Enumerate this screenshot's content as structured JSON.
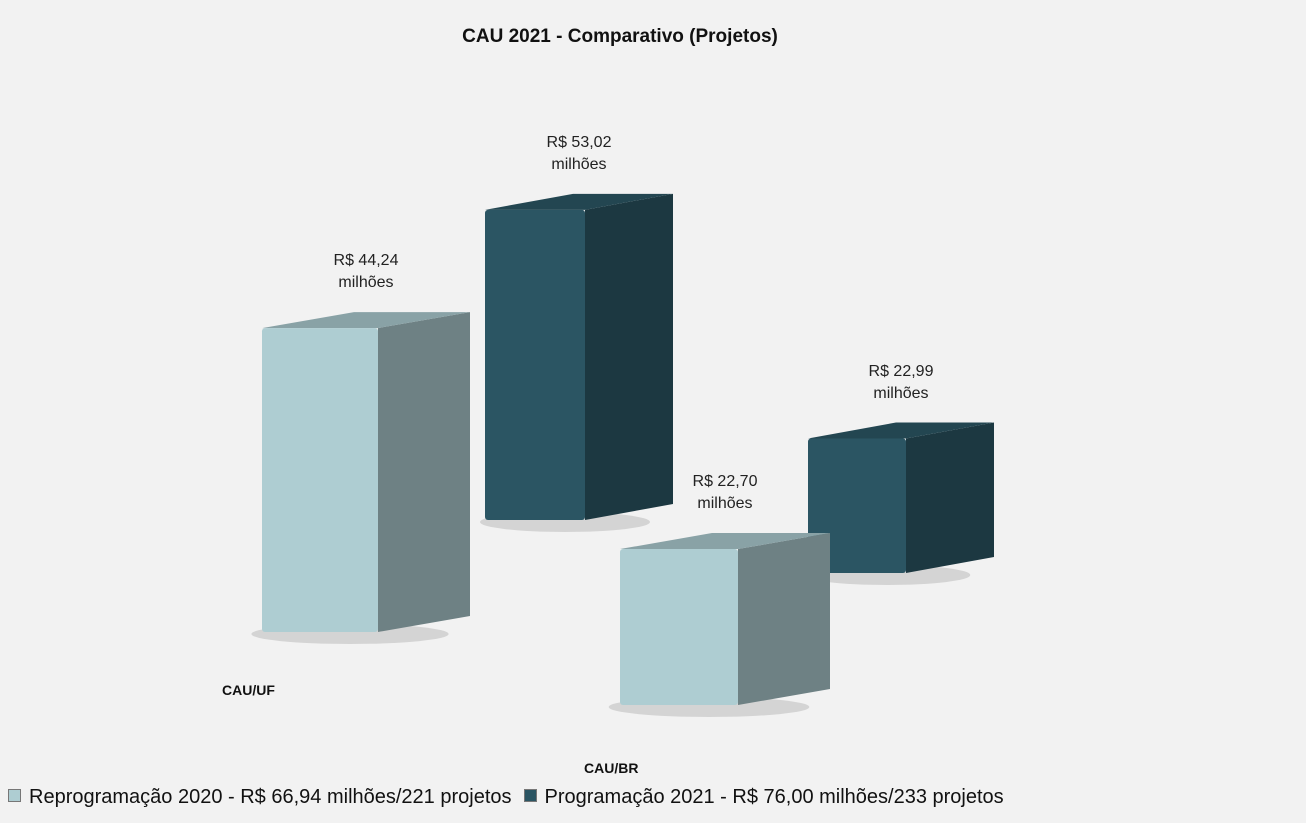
{
  "chart_data": {
    "type": "bar3d",
    "title": "CAU 2021 - Comparativo (Projetos)",
    "categories": [
      "CAU/UF",
      "CAU/BR"
    ],
    "series": [
      {
        "name": "Reprogramação 2020 - R$ 66,94 milhões/221 projetos",
        "color": "#aecdd2",
        "values": [
          44.24,
          22.7
        ],
        "value_labels": [
          "R$ 44,24 milhões",
          "R$ 22,70 milhões"
        ]
      },
      {
        "name": "Programação 2021 - R$ 76,00 milhões/233 projetos",
        "color": "#2b5563",
        "values": [
          53.02,
          22.99
        ],
        "value_labels": [
          "R$ 53,02 milhões",
          "R$ 22,99 milhões"
        ]
      }
    ]
  }
}
